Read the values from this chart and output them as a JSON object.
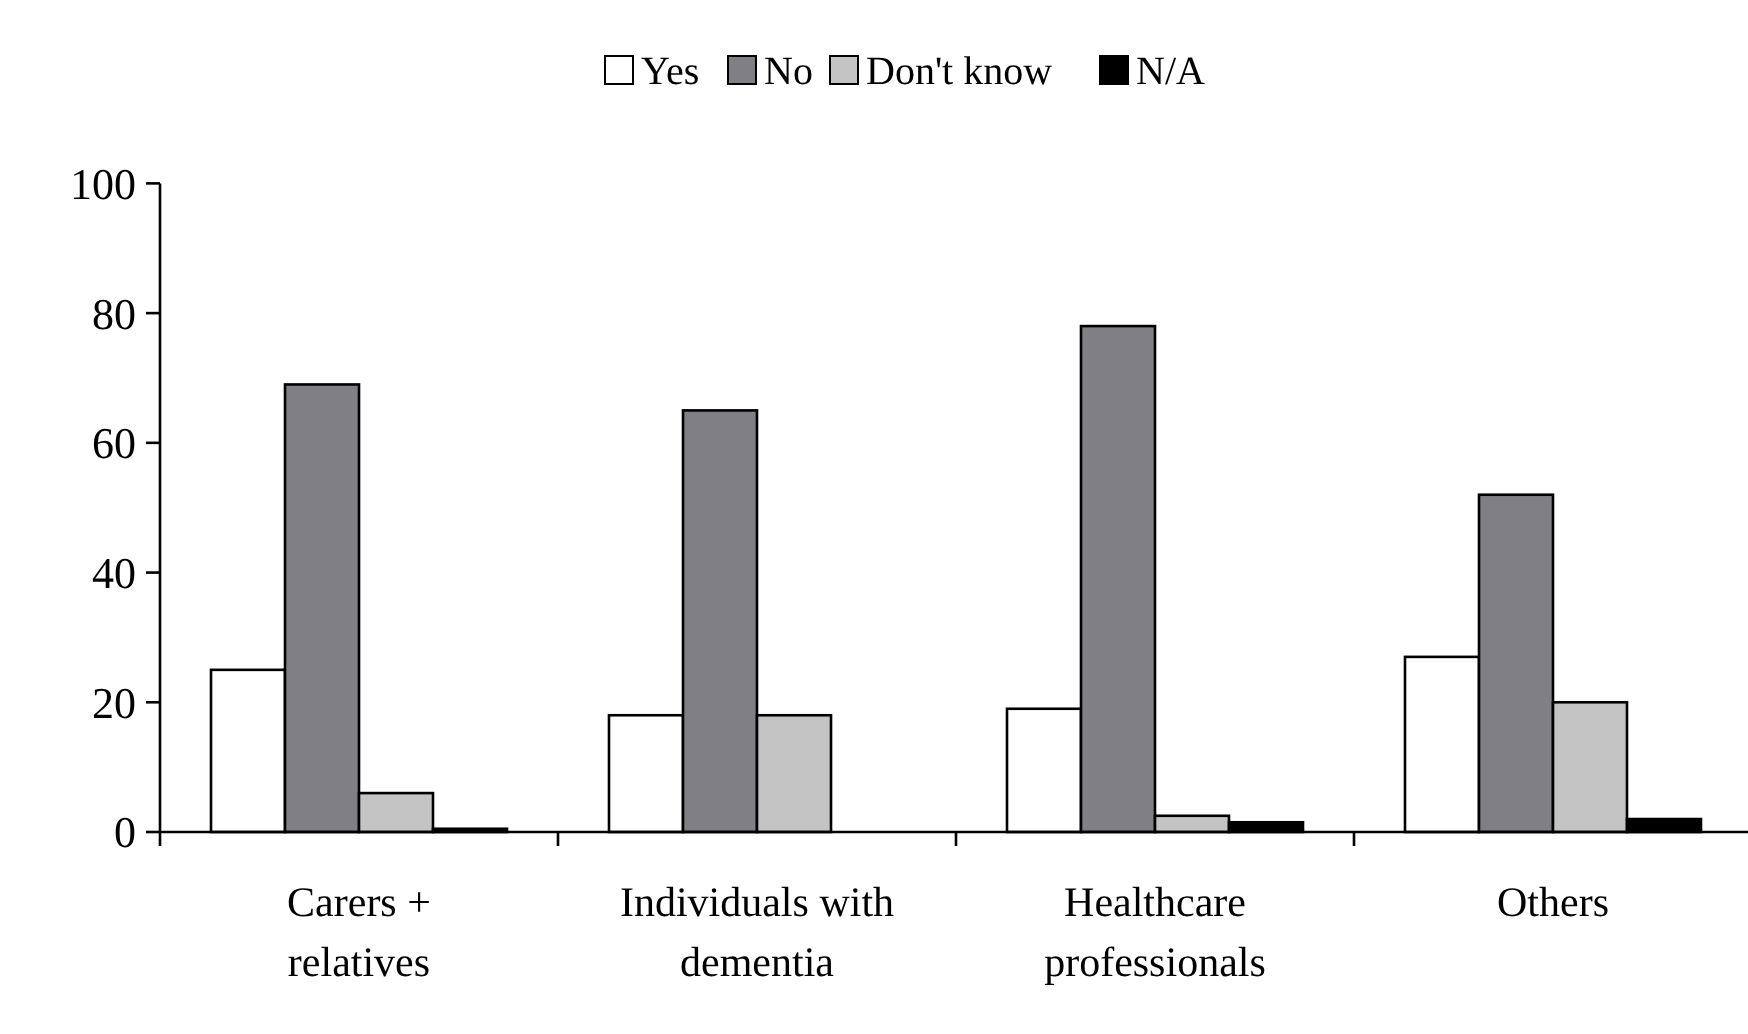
{
  "chart_data": {
    "type": "bar",
    "categories": [
      "Carers + relatives",
      "Individuals with dementia",
      "Healthcare professionals",
      "Others"
    ],
    "series": [
      {
        "name": "Yes",
        "color": "#ffffff",
        "values": [
          25,
          18,
          19,
          27
        ]
      },
      {
        "name": "No",
        "color": "#7f7f84",
        "values": [
          69,
          65,
          78,
          52
        ]
      },
      {
        "name": "Don't know",
        "color": "#c4c4c4",
        "values": [
          6,
          18,
          2.5,
          20
        ]
      },
      {
        "name": "N/A",
        "color": "#000000",
        "values": [
          0.5,
          0,
          1.5,
          2
        ]
      }
    ],
    "ylim": [
      0,
      100
    ],
    "yticks": [
      0,
      20,
      40,
      60,
      80,
      100
    ],
    "legend": "top",
    "grid": false
  }
}
